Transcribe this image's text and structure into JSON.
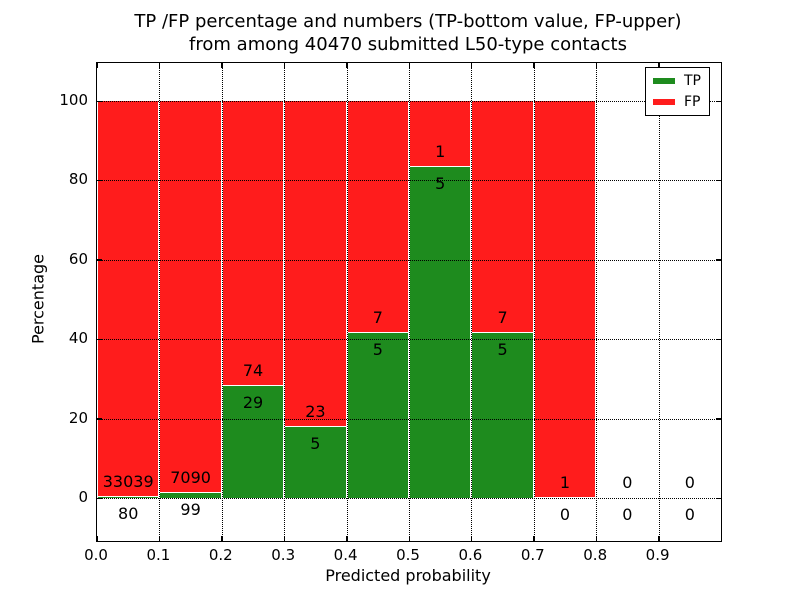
{
  "title": {
    "line1": "TP /FP percentage and numbers (TP-bottom value, FP-upper)",
    "line2": "from among 40470 submitted L50-type contacts"
  },
  "chart_data": {
    "type": "bar",
    "stacking": "percentage",
    "title": "TP /FP percentage and numbers (TP-bottom value, FP-upper)\nfrom among 40470 submitted L50-type contacts",
    "xlabel": "Predicted probability",
    "ylabel": "Percentage",
    "total_contacts": 40470,
    "x_ticks": [
      "0.0",
      "0.1",
      "0.2",
      "0.3",
      "0.4",
      "0.5",
      "0.6",
      "0.7",
      "0.8",
      "0.9"
    ],
    "y_ticks": [
      0,
      20,
      40,
      60,
      80,
      100
    ],
    "xlim": [
      0.0,
      1.0
    ],
    "ylim": [
      -11,
      110
    ],
    "bin_width": 0.1,
    "grid": "dotted",
    "bins": [
      {
        "x_start": 0.0,
        "tp": 80,
        "fp": 33039
      },
      {
        "x_start": 0.1,
        "tp": 99,
        "fp": 7090
      },
      {
        "x_start": 0.2,
        "tp": 29,
        "fp": 74
      },
      {
        "x_start": 0.3,
        "tp": 5,
        "fp": 23
      },
      {
        "x_start": 0.4,
        "tp": 5,
        "fp": 7
      },
      {
        "x_start": 0.5,
        "tp": 5,
        "fp": 1
      },
      {
        "x_start": 0.6,
        "tp": 5,
        "fp": 7
      },
      {
        "x_start": 0.7,
        "tp": 0,
        "fp": 1
      },
      {
        "x_start": 0.8,
        "tp": 0,
        "fp": 0
      },
      {
        "x_start": 0.9,
        "tp": 0,
        "fp": 0
      }
    ],
    "legend": {
      "position": "upper right",
      "entries": [
        {
          "label": "TP",
          "color": "#1e8b1e"
        },
        {
          "label": "FP",
          "color": "#ff1c1c"
        }
      ]
    }
  },
  "colors": {
    "tp": "#1e8b1e",
    "fp": "#ff1c1c",
    "background": "#ffffff",
    "axis": "#000000",
    "bar_edge": "#ffffff"
  }
}
